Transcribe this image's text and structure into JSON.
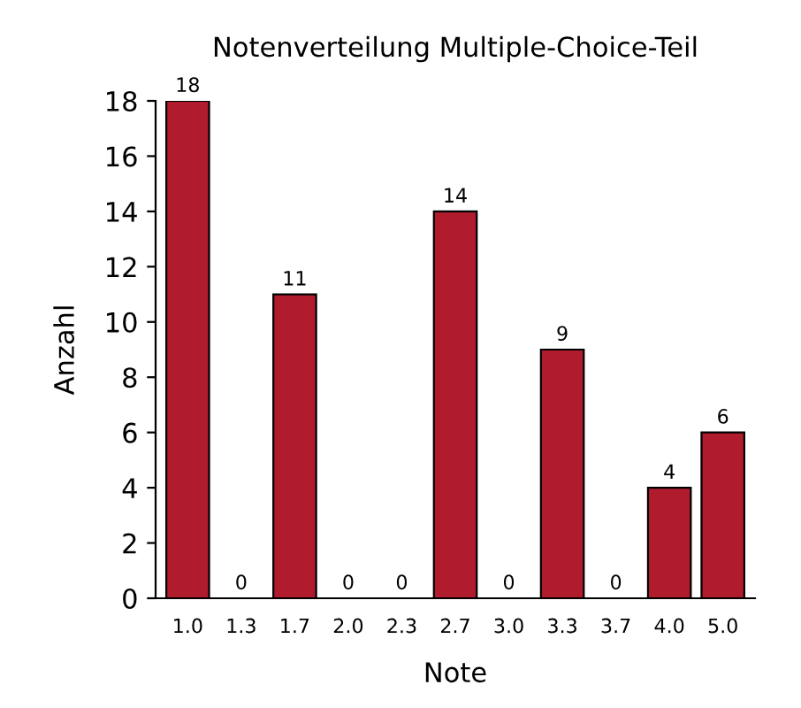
{
  "chart_data": {
    "type": "bar",
    "title": "Notenverteilung Multiple-Choice-Teil",
    "xlabel": "Note",
    "ylabel": "Anzahl",
    "categories": [
      "1.0",
      "1.3",
      "1.7",
      "2.0",
      "2.3",
      "2.7",
      "3.0",
      "3.3",
      "3.7",
      "4.0",
      "5.0"
    ],
    "values": [
      18,
      0,
      11,
      0,
      0,
      14,
      0,
      9,
      0,
      4,
      6
    ],
    "color": "#b01c2e",
    "ylim": [
      0,
      18
    ],
    "yticks": [
      0,
      2,
      4,
      6,
      8,
      10,
      12,
      14,
      16,
      18
    ],
    "grid": false,
    "data_labels": true
  }
}
